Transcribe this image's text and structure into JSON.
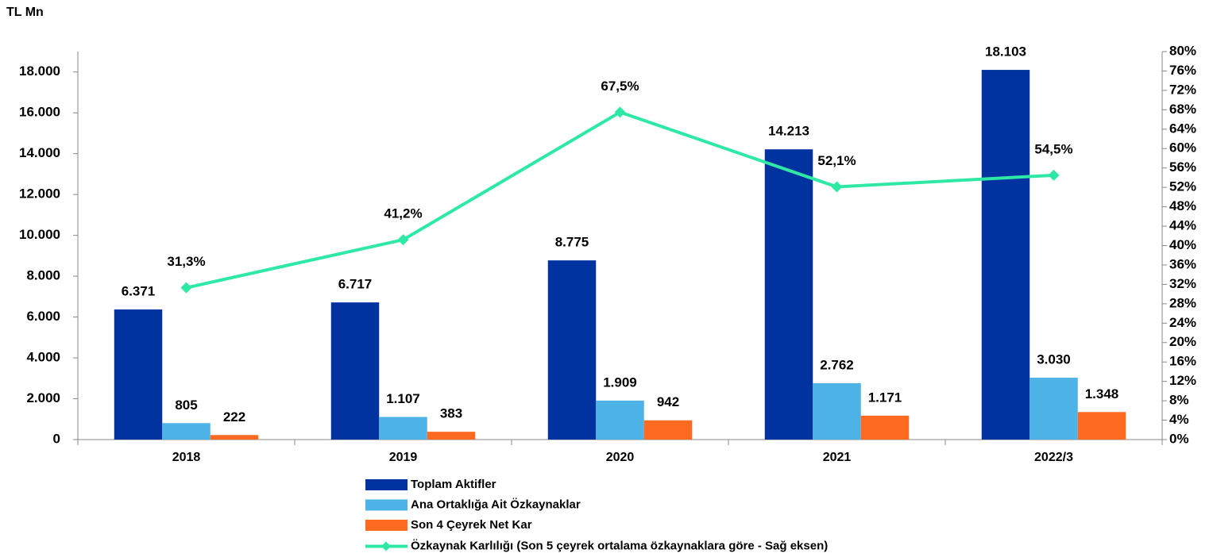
{
  "chart_data": {
    "type": "bar",
    "unit_label": "TL Mn",
    "categories": [
      "2018",
      "2019",
      "2020",
      "2021",
      "2022/3"
    ],
    "series": [
      {
        "name": "Toplam Aktifler",
        "color": "#0033a0",
        "values": [
          6371,
          6717,
          8775,
          14213,
          18103
        ],
        "value_labels": [
          "6.371",
          "6.717",
          "8.775",
          "14.213",
          "18.103"
        ]
      },
      {
        "name": "Ana Ortaklığa Ait Özkaynaklar",
        "color": "#4db3e6",
        "values": [
          805,
          1107,
          1909,
          2762,
          3030
        ],
        "value_labels": [
          "805",
          "1.107",
          "1.909",
          "2.762",
          "3.030"
        ]
      },
      {
        "name": "Son 4 Çeyrek Net Kar",
        "color": "#ff6a21",
        "values": [
          222,
          383,
          942,
          1171,
          1348
        ],
        "value_labels": [
          "222",
          "383",
          "942",
          "1.171",
          "1.348"
        ]
      },
      {
        "name": "Özkaynak Karlılığı (Son 5 çeyrek ortalama özkaynaklara göre - Sağ eksen)",
        "color": "#2ee8a5",
        "type": "line",
        "axis": "y2",
        "values": [
          31.3,
          41.2,
          67.5,
          52.1,
          54.5
        ],
        "value_labels": [
          "31,3%",
          "41,2%",
          "67,5%",
          "52,1%",
          "54,5%"
        ]
      }
    ],
    "ylim": [
      0,
      19000
    ],
    "yticks": [
      0,
      {
        "value": 2000,
        "label": "2.000"
      },
      {
        "value": 4000,
        "label": "4.000"
      },
      {
        "value": 6000,
        "label": "6.000"
      },
      {
        "value": 8000,
        "label": "8.000"
      },
      {
        "value": 10000,
        "label": "10.000"
      },
      {
        "value": 12000,
        "label": "12.000"
      },
      {
        "value": 14000,
        "label": "14.000"
      },
      {
        "value": 16000,
        "label": "16.000"
      },
      {
        "value": 18000,
        "label": "18.000"
      }
    ],
    "y2lim": [
      0,
      80
    ],
    "y2ticks": [
      {
        "value": 0,
        "label": "0%"
      },
      {
        "value": 4,
        "label": "4%"
      },
      {
        "value": 8,
        "label": "8%"
      },
      {
        "value": 12,
        "label": "12%"
      },
      {
        "value": 16,
        "label": "16%"
      },
      {
        "value": 20,
        "label": "20%"
      },
      {
        "value": 24,
        "label": "24%"
      },
      {
        "value": 28,
        "label": "28%"
      },
      {
        "value": 32,
        "label": "32%"
      },
      {
        "value": 36,
        "label": "36%"
      },
      {
        "value": 40,
        "label": "40%"
      },
      {
        "value": 44,
        "label": "44%"
      },
      {
        "value": 48,
        "label": "48%"
      },
      {
        "value": 52,
        "label": "52%"
      },
      {
        "value": 56,
        "label": "56%"
      },
      {
        "value": 60,
        "label": "60%"
      },
      {
        "value": 64,
        "label": "64%"
      },
      {
        "value": 68,
        "label": "68%"
      },
      {
        "value": 72,
        "label": "72%"
      },
      {
        "value": 76,
        "label": "76%"
      },
      {
        "value": 80,
        "label": "80%"
      }
    ],
    "grid": false
  }
}
